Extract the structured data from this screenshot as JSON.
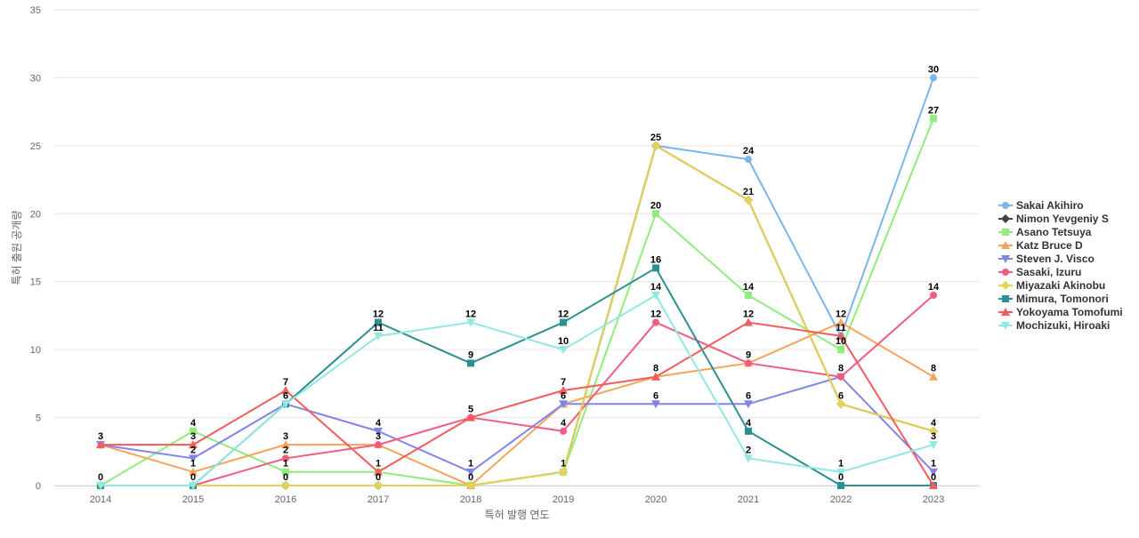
{
  "chart_data": {
    "type": "line",
    "title": "",
    "xlabel": "특허 발행 연도",
    "ylabel": "특허 출원 공개량",
    "categories": [
      "2014",
      "2015",
      "2016",
      "2017",
      "2018",
      "2019",
      "2020",
      "2021",
      "2022",
      "2023"
    ],
    "ylim": [
      0,
      35
    ],
    "yticks": [
      0,
      5,
      10,
      15,
      20,
      25,
      30,
      35
    ],
    "grid": true,
    "legend_position": "right",
    "series": [
      {
        "name": "Sakai Akihiro",
        "color": "#7cb5ec",
        "marker": "circle",
        "values": [
          0,
          0,
          0,
          0,
          0,
          1,
          25,
          24,
          11,
          30
        ]
      },
      {
        "name": "Nimon Yevgeniy S",
        "color": "#434348",
        "marker": "diamond",
        "values": [
          0,
          0,
          0,
          0,
          0,
          1,
          25,
          21,
          6,
          4
        ]
      },
      {
        "name": "Asano Tetsuya",
        "color": "#90ed7d",
        "marker": "square",
        "values": [
          0,
          4,
          1,
          1,
          0,
          1,
          20,
          14,
          10,
          27
        ]
      },
      {
        "name": "Katz Bruce D",
        "color": "#f7a35c",
        "marker": "triangle",
        "values": [
          3,
          1,
          3,
          3,
          0,
          6,
          8,
          9,
          12,
          8
        ]
      },
      {
        "name": "Steven J. Visco",
        "color": "#8085e9",
        "marker": "triangle-down",
        "values": [
          3,
          2,
          6,
          4,
          1,
          6,
          6,
          6,
          8,
          1
        ]
      },
      {
        "name": "Sasaki, Izuru",
        "color": "#f15c80",
        "marker": "circle",
        "values": [
          0,
          0,
          2,
          3,
          5,
          4,
          12,
          9,
          8,
          14
        ]
      },
      {
        "name": "Miyazaki Akinobu",
        "color": "#e4d354",
        "marker": "diamond",
        "values": [
          0,
          0,
          0,
          0,
          0,
          1,
          25,
          21,
          6,
          4
        ]
      },
      {
        "name": "Mimura, Tomonori",
        "color": "#2b908f",
        "marker": "square",
        "values": [
          0,
          0,
          6,
          12,
          9,
          12,
          16,
          4,
          0,
          0
        ]
      },
      {
        "name": "Yokoyama Tomofumi",
        "color": "#f45b5b",
        "marker": "triangle",
        "values": [
          3,
          3,
          7,
          1,
          5,
          7,
          8,
          12,
          11,
          0
        ]
      },
      {
        "name": "Mochizuki, Hiroaki",
        "color": "#91e8e1",
        "marker": "triangle-down",
        "values": [
          0,
          0,
          6,
          11,
          12,
          10,
          14,
          2,
          1,
          3
        ]
      }
    ],
    "data_labels": [
      {
        "category": "2014",
        "values": [
          "3",
          "0"
        ]
      },
      {
        "category": "2015",
        "values": [
          "4",
          "3",
          "2",
          "1",
          "0"
        ]
      },
      {
        "category": "2016",
        "values": [
          "7",
          "6",
          "3",
          "2",
          "1",
          "0"
        ]
      },
      {
        "category": "2017",
        "values": [
          "12",
          "11",
          "4",
          "3",
          "1",
          "0"
        ]
      },
      {
        "category": "2018",
        "values": [
          "12",
          "9",
          "5",
          "1",
          "0"
        ]
      },
      {
        "category": "2019",
        "values": [
          "12",
          "10",
          "7",
          "6",
          "4",
          "1"
        ]
      },
      {
        "category": "2020",
        "values": [
          "25",
          "20",
          "16",
          "14",
          "12",
          "8",
          "6"
        ]
      },
      {
        "category": "2021",
        "values": [
          "24",
          "21",
          "14",
          "12",
          "9",
          "6",
          "4",
          "2"
        ]
      },
      {
        "category": "2022",
        "values": [
          "12",
          "11",
          "10",
          "8",
          "6",
          "1",
          "0"
        ]
      },
      {
        "category": "2023",
        "values": [
          "30",
          "27",
          "14",
          "8",
          "4",
          "3",
          "1",
          "0"
        ]
      }
    ]
  }
}
